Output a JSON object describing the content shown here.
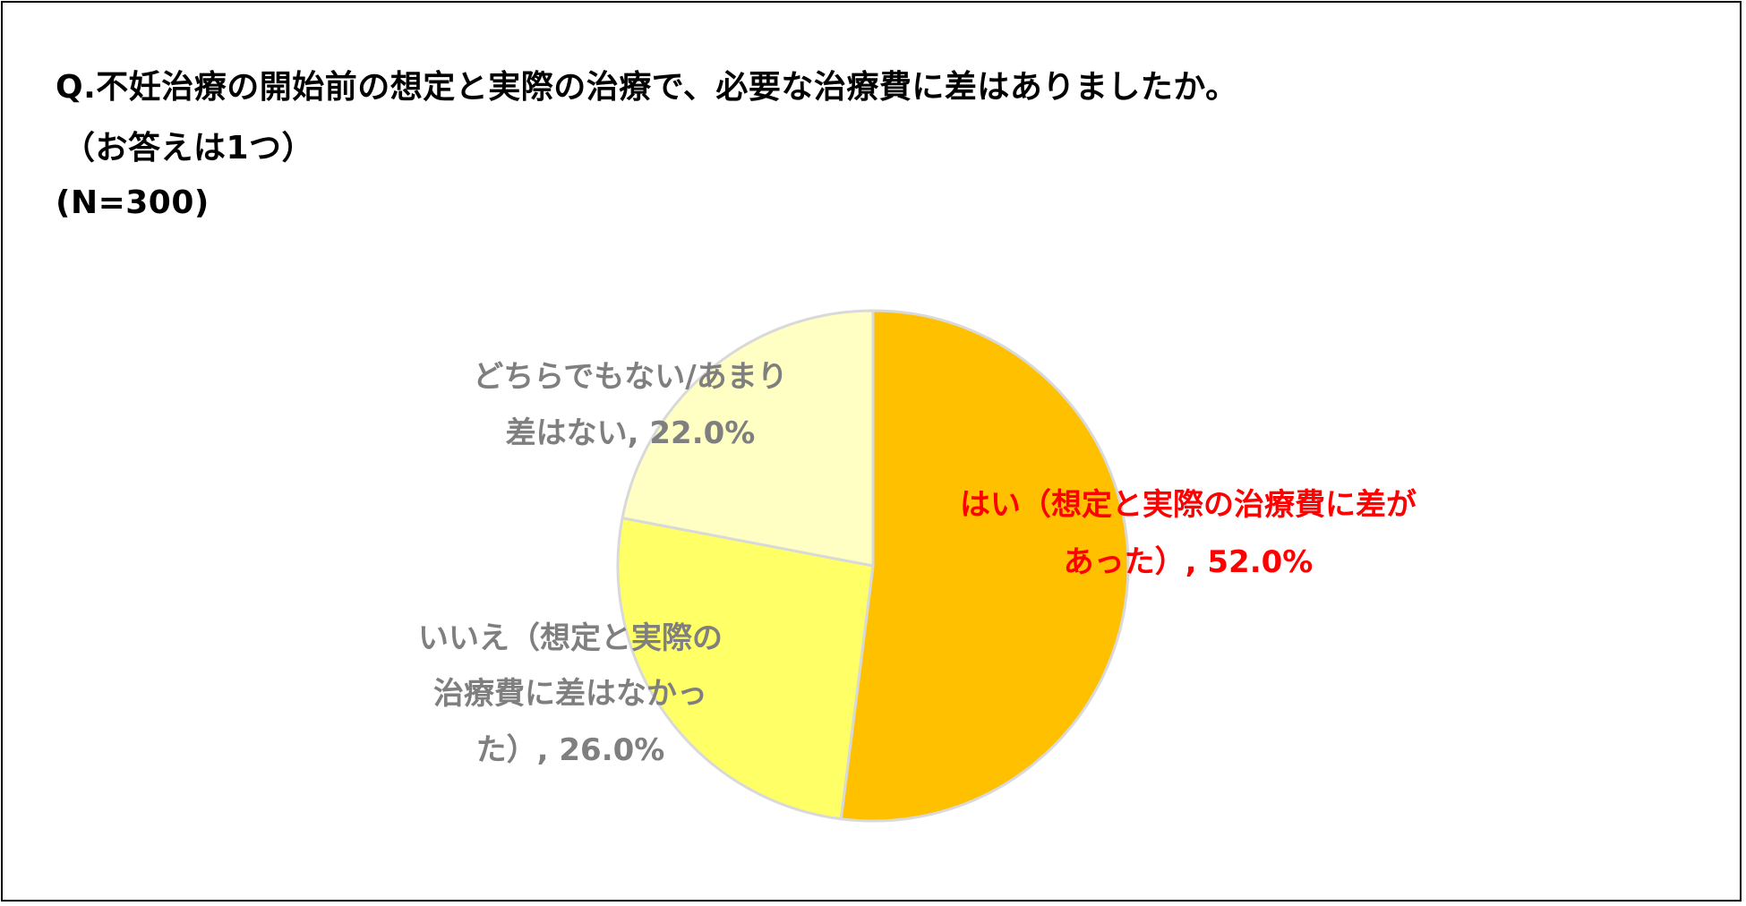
{
  "title_lines": [
    "Q.不妊治療の開始前の想定と実際の治療で、必要な治療費に差はありましたか。",
    "（お答えは1つ）",
    "(N=300)"
  ],
  "chart_data": {
    "type": "pie",
    "start_angle_deg": 0,
    "direction": "clockwise",
    "slices": [
      {
        "label": "はい（想定と実際の治療費に差があった）",
        "value": 52.0,
        "display_lines": [
          "はい（想定と実際の治療費に差が",
          "あった）, 52.0%"
        ],
        "color": "#ffc000",
        "label_color": "#ff0000"
      },
      {
        "label": "いいえ（想定と実際の治療費に差はなかった）",
        "value": 26.0,
        "display_lines": [
          "いいえ（想定と実際の",
          "治療費に差はなかっ",
          "た）, 26.0%"
        ],
        "color": "#ffff66",
        "label_color": "#7f7f7f"
      },
      {
        "label": "どちらでもない/あまり差はない",
        "value": 22.0,
        "display_lines": [
          "どちらでもない/あまり",
          "差はない, 22.0%"
        ],
        "color": "#ffffc3",
        "label_color": "#7f7f7f"
      }
    ],
    "slice_border_color": "#d9d9d9",
    "legend": "none"
  }
}
